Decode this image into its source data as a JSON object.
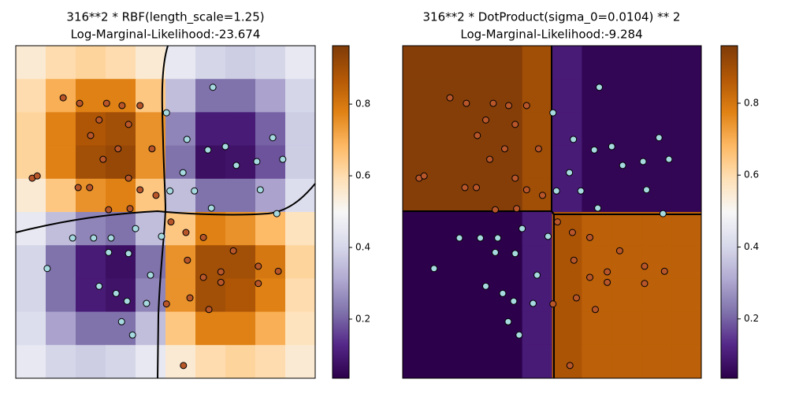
{
  "chart_data": [
    {
      "type": "heatmap-scatter",
      "title": "316**2 * RBF(length_scale=1.25)",
      "subtitle": "Log-Marginal-Likelihood:-23.674",
      "xlim": [
        -3,
        3
      ],
      "ylim": [
        -3,
        3
      ],
      "heatmap": [
        [
          0.55,
          0.6,
          0.62,
          0.6,
          0.55,
          0.45,
          0.4,
          0.38,
          0.4,
          0.45
        ],
        [
          0.6,
          0.7,
          0.78,
          0.78,
          0.65,
          0.35,
          0.22,
          0.22,
          0.3,
          0.4
        ],
        [
          0.62,
          0.78,
          0.88,
          0.9,
          0.75,
          0.25,
          0.1,
          0.1,
          0.2,
          0.38
        ],
        [
          0.62,
          0.78,
          0.9,
          0.92,
          0.75,
          0.22,
          0.07,
          0.08,
          0.18,
          0.38
        ],
        [
          0.55,
          0.65,
          0.75,
          0.78,
          0.65,
          0.35,
          0.22,
          0.22,
          0.3,
          0.42
        ],
        [
          0.45,
          0.35,
          0.25,
          0.22,
          0.35,
          0.65,
          0.78,
          0.75,
          0.68,
          0.58
        ],
        [
          0.4,
          0.22,
          0.1,
          0.07,
          0.22,
          0.75,
          0.9,
          0.9,
          0.8,
          0.62
        ],
        [
          0.4,
          0.22,
          0.1,
          0.08,
          0.25,
          0.75,
          0.9,
          0.88,
          0.78,
          0.6
        ],
        [
          0.42,
          0.3,
          0.22,
          0.22,
          0.35,
          0.65,
          0.78,
          0.78,
          0.7,
          0.58
        ],
        [
          0.45,
          0.4,
          0.38,
          0.4,
          0.45,
          0.55,
          0.6,
          0.62,
          0.6,
          0.55
        ]
      ],
      "colormap": [
        "#2d004b",
        "#542788",
        "#8073ac",
        "#b2abd2",
        "#d8daeb",
        "#f7f7f7",
        "#fee0b6",
        "#fdb863",
        "#e08214",
        "#b35806",
        "#7f3b08"
      ],
      "clim": [
        0.035,
        0.963
      ],
      "cticks": [
        0.2,
        0.4,
        0.6,
        0.8
      ],
      "series": [
        {
          "color": "#b8562a",
          "x": [
            -2.05,
            -1.72,
            -1.18,
            -0.87,
            -0.51,
            -1.33,
            -0.74,
            -1.5,
            -0.95,
            -1.25,
            -0.27,
            -2.67,
            -2.57,
            -1.75,
            -1.52,
            -0.74,
            -0.51,
            -0.19,
            -1.14,
            -0.71,
            0.11,
            0.41,
            0.76,
            1.36,
            0.44,
            1.11,
            1.86,
            2.26,
            0.76,
            0.02,
            0.49,
            0.36,
            0.87,
            1.86,
            1.11
          ],
          "y": [
            2.06,
            1.96,
            1.96,
            1.92,
            1.92,
            1.66,
            1.58,
            1.38,
            1.14,
            0.95,
            1.14,
            0.61,
            0.65,
            0.44,
            0.44,
            0.61,
            0.4,
            0.3,
            0.04,
            0.06,
            -0.18,
            -0.37,
            -0.46,
            -0.7,
            -0.87,
            -1.08,
            -0.98,
            -1.07,
            -1.18,
            -1.66,
            -1.55,
            -2.77,
            -1.76,
            -1.29,
            -1.27
          ]
        },
        {
          "color": "#a6d9e0",
          "x": [
            0.95,
            0.02,
            0.43,
            0.85,
            1.2,
            2.15,
            2.35,
            1.83,
            1.42,
            0.35,
            0.58,
            0.09,
            1.9,
            2.23,
            0.92,
            -1.86,
            -2.37,
            -1.44,
            -1.09,
            -0.74,
            -1.14,
            -0.3,
            -1.33,
            -0.99,
            -0.77,
            -0.88,
            -0.66,
            -0.38,
            -0.08,
            -0.6
          ],
          "y": [
            2.25,
            1.79,
            1.31,
            1.12,
            1.18,
            1.34,
            0.95,
            0.91,
            0.84,
            0.71,
            0.38,
            0.38,
            0.4,
            -0.03,
            0.07,
            -0.47,
            -1.02,
            -0.47,
            -0.47,
            -0.75,
            -0.73,
            -1.14,
            -1.34,
            -1.47,
            -1.61,
            -1.98,
            -2.22,
            -1.65,
            -0.44,
            -0.3
          ]
        }
      ]
    },
    {
      "type": "heatmap-scatter",
      "title": "316**2 * DotProduct(sigma_0=0.0104) ** 2",
      "subtitle": "Log-Marginal-Likelihood:-9.284",
      "xlim": [
        -3,
        3
      ],
      "ylim": [
        -3,
        3
      ],
      "heatmap": [
        [
          0.95,
          0.95,
          0.95,
          0.95,
          0.9,
          0.1,
          0.05,
          0.05,
          0.05,
          0.05
        ],
        [
          0.95,
          0.95,
          0.95,
          0.95,
          0.9,
          0.1,
          0.05,
          0.05,
          0.05,
          0.05
        ],
        [
          0.95,
          0.95,
          0.95,
          0.95,
          0.9,
          0.1,
          0.05,
          0.05,
          0.05,
          0.05
        ],
        [
          0.95,
          0.95,
          0.95,
          0.95,
          0.9,
          0.1,
          0.05,
          0.05,
          0.05,
          0.05
        ],
        [
          0.95,
          0.95,
          0.95,
          0.95,
          0.9,
          0.1,
          0.05,
          0.05,
          0.05,
          0.05
        ],
        [
          0.03,
          0.03,
          0.03,
          0.03,
          0.1,
          0.88,
          0.85,
          0.85,
          0.85,
          0.85
        ],
        [
          0.03,
          0.03,
          0.03,
          0.03,
          0.1,
          0.88,
          0.85,
          0.85,
          0.85,
          0.85
        ],
        [
          0.03,
          0.03,
          0.03,
          0.03,
          0.1,
          0.88,
          0.85,
          0.85,
          0.85,
          0.85
        ],
        [
          0.03,
          0.03,
          0.03,
          0.03,
          0.1,
          0.88,
          0.85,
          0.85,
          0.85,
          0.85
        ],
        [
          0.03,
          0.03,
          0.03,
          0.03,
          0.1,
          0.88,
          0.85,
          0.85,
          0.85,
          0.85
        ]
      ],
      "colormap": [
        "#2d004b",
        "#542788",
        "#8073ac",
        "#b2abd2",
        "#d8daeb",
        "#f7f7f7",
        "#fee0b6",
        "#fdb863",
        "#e08214",
        "#b35806",
        "#7f3b08"
      ],
      "clim": [
        0.035,
        0.96
      ],
      "cticks": [
        0.2,
        0.4,
        0.6,
        0.8
      ],
      "series": [
        {
          "color": "#b8562a",
          "x": [
            -2.05,
            -1.72,
            -1.18,
            -0.87,
            -0.51,
            -1.33,
            -0.74,
            -1.5,
            -0.95,
            -1.25,
            -0.27,
            -2.67,
            -2.57,
            -1.75,
            -1.52,
            -0.74,
            -0.51,
            -0.19,
            -1.14,
            -0.71,
            0.11,
            0.41,
            0.76,
            1.36,
            0.44,
            1.11,
            1.86,
            2.26,
            0.76,
            0.02,
            0.49,
            0.36,
            0.87,
            1.86,
            1.11
          ],
          "y": [
            2.06,
            1.96,
            1.96,
            1.92,
            1.92,
            1.66,
            1.58,
            1.38,
            1.14,
            0.95,
            1.14,
            0.61,
            0.65,
            0.44,
            0.44,
            0.61,
            0.4,
            0.3,
            0.04,
            0.06,
            -0.18,
            -0.37,
            -0.46,
            -0.7,
            -0.87,
            -1.08,
            -0.98,
            -1.07,
            -1.18,
            -1.66,
            -1.55,
            -2.77,
            -1.76,
            -1.29,
            -1.27
          ]
        },
        {
          "color": "#a6d9e0",
          "x": [
            0.95,
            0.02,
            0.43,
            0.85,
            1.2,
            2.15,
            2.35,
            1.83,
            1.42,
            0.35,
            0.58,
            0.09,
            1.9,
            2.23,
            0.92,
            -1.86,
            -2.37,
            -1.44,
            -1.09,
            -0.74,
            -1.14,
            -0.3,
            -1.33,
            -0.99,
            -0.77,
            -0.88,
            -0.66,
            -0.38,
            -0.08,
            -0.6
          ],
          "y": [
            2.25,
            1.79,
            1.31,
            1.12,
            1.18,
            1.34,
            0.95,
            0.91,
            0.84,
            0.71,
            0.38,
            0.38,
            0.4,
            -0.03,
            0.07,
            -0.47,
            -1.02,
            -0.47,
            -0.47,
            -0.75,
            -0.73,
            -1.14,
            -1.34,
            -1.47,
            -1.61,
            -1.98,
            -2.22,
            -1.65,
            -0.44,
            -0.3
          ]
        }
      ]
    }
  ]
}
